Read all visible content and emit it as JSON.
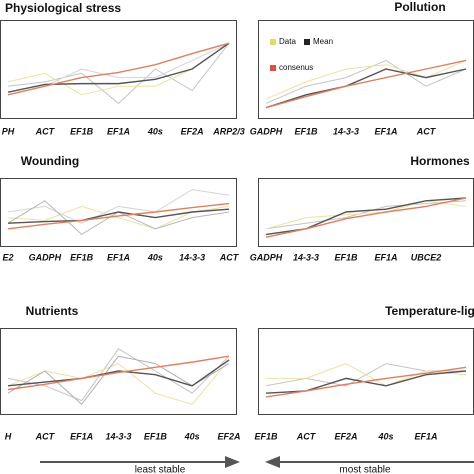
{
  "chart_data": [
    {
      "type": "line",
      "title": "Physiological stress",
      "categories": [
        "PH",
        "ACT",
        "EF1B",
        "EF1A",
        "40s",
        "EF2A",
        "ARP2/3"
      ],
      "ylim": [
        0,
        10
      ],
      "series": [
        {
          "color": "#c4c4c4",
          "values": [
            3,
            3.5,
            4.5,
            1,
            5,
            2.5,
            8
          ]
        },
        {
          "color": "#ece3a0",
          "values": [
            3.5,
            4.5,
            2,
            3,
            3,
            5,
            8
          ]
        },
        {
          "color": "#d4d4d4",
          "values": [
            2,
            3,
            5,
            4,
            4,
            6,
            8
          ]
        },
        {
          "color": "#555555",
          "values": [
            2.3,
            3.2,
            3.3,
            3.3,
            3.8,
            5,
            8
          ]
        },
        {
          "color": "#e08060",
          "values": [
            2,
            3,
            4,
            4.6,
            5.5,
            6.8,
            8
          ]
        }
      ]
    },
    {
      "type": "line",
      "title": "Pollution",
      "categories": [
        "GADPH",
        "EF1B",
        "14-3-3",
        "EF1A",
        "ACT",
        null
      ],
      "ylim": [
        0,
        10
      ],
      "legend": [
        {
          "name": "Data",
          "color": "#e6d86a"
        },
        {
          "name": "Mean",
          "color": "#222222"
        },
        {
          "name": "consenus",
          "color": "#e05040"
        }
      ],
      "series": [
        {
          "color": "#c4c4c4",
          "values": [
            1,
            3,
            4,
            6,
            3,
            5
          ]
        },
        {
          "color": "#ece3a0",
          "values": [
            1.5,
            3.5,
            5,
            5.5,
            4,
            6
          ]
        },
        {
          "color": "#555555",
          "values": [
            0.5,
            2,
            3,
            5,
            4,
            5
          ]
        },
        {
          "color": "#e08060",
          "values": [
            0.5,
            1.8,
            3,
            4,
            5,
            6
          ]
        }
      ]
    },
    {
      "type": "line",
      "title": "Wounding",
      "categories": [
        "E2",
        "GADPH",
        "EF1B",
        "EF1A",
        "40s",
        "14-3-3",
        "ACT"
      ],
      "ylim": [
        0,
        10
      ],
      "series": [
        {
          "color": "#d4d4d4",
          "values": [
            5,
            6,
            3,
            6,
            5,
            9,
            8
          ]
        },
        {
          "color": "#ece3a0",
          "values": [
            4,
            3.5,
            6,
            4,
            2,
            5,
            6
          ]
        },
        {
          "color": "#b8b8b8",
          "values": [
            3,
            7,
            1,
            5,
            2,
            4,
            5
          ]
        },
        {
          "color": "#555555",
          "values": [
            3,
            3.3,
            3.5,
            5,
            4,
            5,
            5.5
          ]
        },
        {
          "color": "#e08060",
          "values": [
            2,
            2.8,
            3.5,
            4.3,
            5,
            5.8,
            6.5
          ]
        }
      ]
    },
    {
      "type": "line",
      "title": "Hormones",
      "categories": [
        "GADPH",
        "14-3-3",
        "EF1B",
        "EF1A",
        "UBCE2",
        null
      ],
      "ylim": [
        0,
        10
      ],
      "series": [
        {
          "color": "#c4c4c4",
          "values": [
            2,
            3,
            4,
            6,
            6.5,
            7
          ]
        },
        {
          "color": "#ece3a0",
          "values": [
            2,
            4,
            4.5,
            5,
            7,
            6
          ]
        },
        {
          "color": "#555555",
          "values": [
            1,
            2,
            5,
            5.5,
            7,
            7.5
          ]
        },
        {
          "color": "#e08060",
          "values": [
            0.5,
            2,
            3.8,
            5,
            6,
            7.5
          ]
        }
      ]
    },
    {
      "type": "line",
      "title": "Nutrients",
      "categories": [
        "H",
        "ACT",
        "EF1A",
        "14-3-3",
        "EF1B",
        "40s",
        "EF2A"
      ],
      "ylim": [
        0,
        10
      ],
      "series": [
        {
          "color": "#c4c4c4",
          "values": [
            4,
            3,
            1,
            8,
            5,
            2,
            7
          ]
        },
        {
          "color": "#ece3a0",
          "values": [
            3,
            5,
            4,
            6,
            2,
            0.5,
            6.5
          ]
        },
        {
          "color": "#b0b0b0",
          "values": [
            2,
            5,
            0.5,
            7,
            6,
            3,
            6
          ]
        },
        {
          "color": "#555555",
          "values": [
            3,
            3.5,
            4,
            5,
            4.5,
            3,
            6.5
          ]
        },
        {
          "color": "#e08060",
          "values": [
            2.5,
            3.2,
            4,
            4.8,
            5.5,
            6.2,
            7
          ]
        }
      ]
    },
    {
      "type": "line",
      "title": "Temperature-lig",
      "categories": [
        "EF1B",
        "ACT",
        "EF2A",
        "40s",
        "EF1A",
        null
      ],
      "ylim": [
        0,
        10
      ],
      "series": [
        {
          "color": "#c4c4c4",
          "values": [
            3,
            4,
            3,
            6,
            5,
            5
          ]
        },
        {
          "color": "#ece3a0",
          "values": [
            4,
            4,
            6,
            3,
            5,
            4.5
          ]
        },
        {
          "color": "#555555",
          "values": [
            2,
            2.3,
            4,
            3,
            4.5,
            5
          ]
        },
        {
          "color": "#e08060",
          "values": [
            1.5,
            2.3,
            3.2,
            4,
            4.7,
            5.5
          ]
        }
      ]
    }
  ],
  "footer": {
    "left": "least stable",
    "right": "most stable"
  }
}
